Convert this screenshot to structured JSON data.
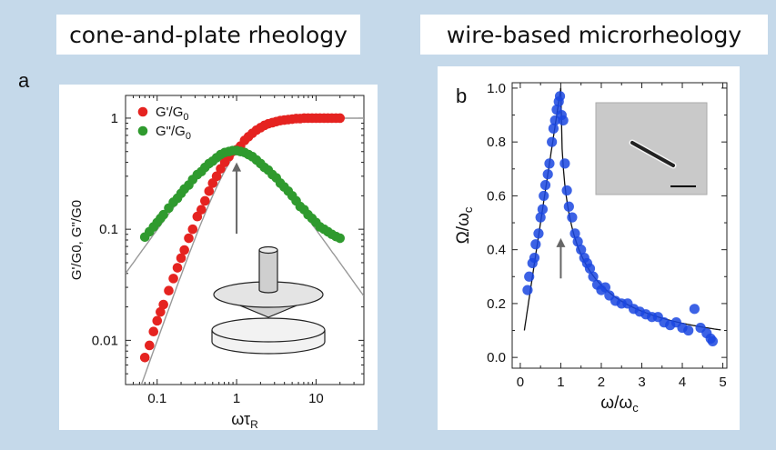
{
  "titles": {
    "left": "cone-and-plate rheology",
    "right": "wire-based microrheology"
  },
  "chart_data": [
    {
      "panel": "a",
      "type": "scatter",
      "scale": "log-log",
      "xlabel": "ωτR",
      "ylabel": "G'/G0, G\"/G0",
      "xlim": [
        0.04,
        40
      ],
      "ylim": [
        0.004,
        1.6
      ],
      "xticks": [
        {
          "v": 0.1,
          "label": "0.1"
        },
        {
          "v": 1,
          "label": "1"
        },
        {
          "v": 10,
          "label": "10"
        }
      ],
      "yticks": [
        {
          "v": 0.01,
          "label": "0.01"
        },
        {
          "v": 0.1,
          "label": "0.1"
        },
        {
          "v": 1,
          "label": "1"
        }
      ],
      "legend_position": "top-left",
      "legend": [
        {
          "text_main": "G'/G",
          "text_sub": "0",
          "color": "#e52320"
        },
        {
          "text_main": "G\"/G",
          "text_sub": "0",
          "color": "#2f9a2e"
        }
      ],
      "annotation": "arrow at ωτR = 1",
      "series": [
        {
          "name": "G'/G0",
          "color": "#e52320",
          "x": [
            0.07,
            0.08,
            0.09,
            0.1,
            0.11,
            0.12,
            0.14,
            0.16,
            0.18,
            0.2,
            0.22,
            0.25,
            0.28,
            0.32,
            0.36,
            0.4,
            0.45,
            0.5,
            0.56,
            0.63,
            0.71,
            0.8,
            0.89,
            1.0,
            1.12,
            1.26,
            1.41,
            1.58,
            1.78,
            2.0,
            2.24,
            2.51,
            2.82,
            3.16,
            3.55,
            3.98,
            4.47,
            5.01,
            5.62,
            6.31,
            7.08,
            7.94,
            8.91,
            10,
            11.2,
            12.6,
            14.1,
            15.8,
            17.8,
            20
          ],
          "y": [
            0.007,
            0.009,
            0.012,
            0.015,
            0.018,
            0.021,
            0.028,
            0.036,
            0.045,
            0.055,
            0.065,
            0.083,
            0.1,
            0.13,
            0.15,
            0.18,
            0.22,
            0.26,
            0.3,
            0.35,
            0.4,
            0.45,
            0.5,
            0.52,
            0.56,
            0.63,
            0.68,
            0.73,
            0.78,
            0.82,
            0.86,
            0.89,
            0.91,
            0.93,
            0.95,
            0.96,
            0.97,
            0.98,
            0.99,
            0.99,
            1.0,
            1.0,
            1.0,
            1.0,
            1.0,
            1.0,
            1.0,
            1.0,
            1.0,
            1.0
          ]
        },
        {
          "name": "G\"/G0",
          "color": "#2f9a2e",
          "x": [
            0.07,
            0.08,
            0.09,
            0.1,
            0.11,
            0.12,
            0.14,
            0.16,
            0.18,
            0.2,
            0.22,
            0.25,
            0.28,
            0.32,
            0.36,
            0.4,
            0.45,
            0.5,
            0.56,
            0.63,
            0.71,
            0.8,
            0.89,
            1.0,
            1.12,
            1.26,
            1.41,
            1.58,
            1.78,
            2.0,
            2.24,
            2.51,
            2.82,
            3.16,
            3.55,
            3.98,
            4.47,
            5.01,
            5.62,
            6.31,
            7.08,
            7.94,
            8.91,
            10,
            11.2,
            12.6,
            14.1,
            15.8,
            17.8,
            20
          ],
          "y": [
            0.085,
            0.095,
            0.105,
            0.115,
            0.125,
            0.135,
            0.155,
            0.175,
            0.19,
            0.21,
            0.23,
            0.25,
            0.28,
            0.31,
            0.33,
            0.36,
            0.39,
            0.41,
            0.44,
            0.47,
            0.49,
            0.5,
            0.51,
            0.51,
            0.5,
            0.49,
            0.47,
            0.45,
            0.42,
            0.39,
            0.36,
            0.34,
            0.31,
            0.29,
            0.26,
            0.24,
            0.22,
            0.2,
            0.18,
            0.16,
            0.15,
            0.135,
            0.125,
            0.115,
            0.105,
            0.1,
            0.095,
            0.09,
            0.086,
            0.083
          ]
        }
      ]
    },
    {
      "panel": "b",
      "type": "scatter",
      "xlabel": "ω/ωc",
      "ylabel": "Ω/ωc",
      "xlim": [
        -0.2,
        5.1
      ],
      "ylim": [
        -0.04,
        1.02
      ],
      "xticks": [
        0,
        1,
        2,
        3,
        4,
        5
      ],
      "yticks": [
        {
          "v": 0.0,
          "label": "0.0"
        },
        {
          "v": 0.2,
          "label": "0.2"
        },
        {
          "v": 0.4,
          "label": "0.4"
        },
        {
          "v": 0.6,
          "label": "0.6"
        },
        {
          "v": 0.8,
          "label": "0.8"
        },
        {
          "v": 1.0,
          "label": "1.0"
        }
      ],
      "annotation": "arrow at ω/ωc = 1; inset micrograph of wire with scale bar",
      "series": [
        {
          "name": "data",
          "color": "#1a47e0",
          "x": [
            0.18,
            0.22,
            0.3,
            0.35,
            0.38,
            0.45,
            0.5,
            0.55,
            0.58,
            0.62,
            0.68,
            0.72,
            0.78,
            0.82,
            0.86,
            0.9,
            0.95,
            0.98,
            1.02,
            1.06,
            1.1,
            1.15,
            1.2,
            1.28,
            1.35,
            1.42,
            1.5,
            1.58,
            1.65,
            1.72,
            1.8,
            1.9,
            2.0,
            2.1,
            2.2,
            2.35,
            2.5,
            2.65,
            2.8,
            2.95,
            3.1,
            3.25,
            3.4,
            3.55,
            3.7,
            3.85,
            4.0,
            4.15,
            4.3,
            4.45,
            4.6,
            4.7,
            4.75
          ],
          "y": [
            0.25,
            0.3,
            0.35,
            0.37,
            0.42,
            0.46,
            0.52,
            0.55,
            0.6,
            0.64,
            0.68,
            0.72,
            0.8,
            0.85,
            0.88,
            0.92,
            0.95,
            0.97,
            0.9,
            0.88,
            0.72,
            0.62,
            0.56,
            0.52,
            0.46,
            0.43,
            0.4,
            0.37,
            0.35,
            0.33,
            0.3,
            0.27,
            0.25,
            0.26,
            0.23,
            0.21,
            0.2,
            0.2,
            0.18,
            0.17,
            0.16,
            0.15,
            0.15,
            0.13,
            0.12,
            0.13,
            0.11,
            0.1,
            0.18,
            0.11,
            0.09,
            0.07,
            0.06
          ]
        }
      ]
    }
  ]
}
